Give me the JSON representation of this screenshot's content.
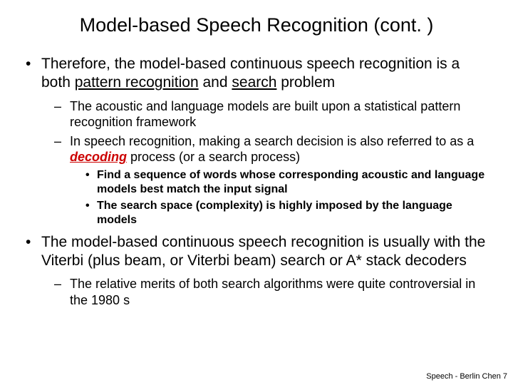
{
  "title": "Model-based Speech Recognition (cont. )",
  "b1_pre": "Therefore, the model-based continuous speech recognition is a both ",
  "b1_u1": "pattern recognition",
  "b1_mid": " and ",
  "b1_u2": "search",
  "b1_post": " problem",
  "b1s1": "The acoustic and language models are built upon a statistical pattern recognition framework",
  "b1s2_pre": "In speech recognition, making a search decision is also referred to as a ",
  "b1s2_dec": "decoding",
  "b1s2_post": " process (or a search process)",
  "b1s2a": "Find a sequence of words whose corresponding acoustic and language models best match the input signal",
  "b1s2b": "The search space (complexity) is highly imposed by the language models",
  "b2": "The model-based continuous speech recognition is usually with the Viterbi (plus beam, or Viterbi beam) search or A* stack decoders",
  "b2s1": "The relative merits of both search algorithms were quite controversial in the 1980 s",
  "footer": "Speech - Berlin Chen  7"
}
